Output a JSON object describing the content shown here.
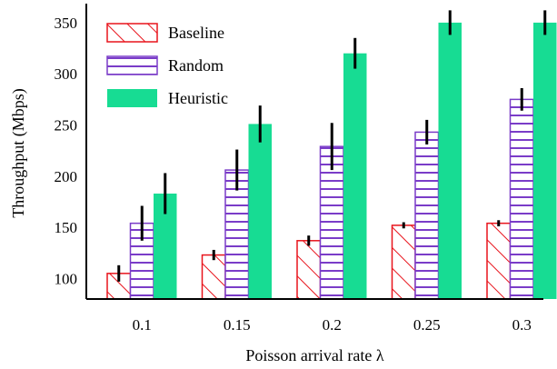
{
  "chart_data": {
    "type": "bar",
    "title": "",
    "xlabel": "Poisson arrival rate λ",
    "ylabel": "Throughput (Mbps)",
    "categories": [
      "0.1",
      "0.15",
      "0.2",
      "0.25",
      "0.3"
    ],
    "ylim": [
      80,
      365
    ],
    "yticks": [
      100,
      150,
      200,
      250,
      300,
      350
    ],
    "grid": false,
    "legend": "top-left",
    "series": [
      {
        "name": "Baseline",
        "pattern": "diagonal-hatch",
        "color": "#e8141c",
        "values": [
          105,
          123,
          137,
          152,
          154
        ],
        "error": [
          8,
          5,
          5,
          3,
          3
        ]
      },
      {
        "name": "Random",
        "pattern": "horizontal-hatch",
        "color": "#7a3cc8",
        "values": [
          154,
          206,
          229,
          243,
          275
        ],
        "error": [
          17,
          20,
          23,
          12,
          11
        ]
      },
      {
        "name": "Heuristic",
        "pattern": "solid",
        "color": "#17dc93",
        "values": [
          183,
          251,
          320,
          350,
          350
        ],
        "error": [
          20,
          18,
          15,
          12,
          12
        ]
      }
    ]
  }
}
